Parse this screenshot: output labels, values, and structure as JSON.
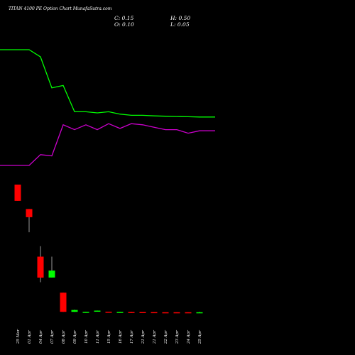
{
  "header": {
    "title": "TITAN 4100 PE Option Chart MunafaSutra.com",
    "close": "C: 0.15",
    "high": "H: 0.50",
    "open": "O: 0.10",
    "low": "L: 0.05"
  },
  "colors": {
    "background": "#000000",
    "up": "#00ff00",
    "down": "#ff0000",
    "wick": "#999999",
    "line_green": "#00ff00",
    "line_magenta": "#cc00cc",
    "label": "#ffffff"
  },
  "chart_data": {
    "type": "candlestick",
    "title": "TITAN 4100 PE Option Chart MunafaSutra.com",
    "categories": [
      "25 Mar",
      "01 Apr",
      "04 Apr",
      "07 Apr",
      "08 Apr",
      "09 Apr",
      "10 Apr",
      "11 Apr",
      "15 Apr",
      "16 Apr",
      "17 Apr",
      "21 Apr",
      "21 Apr",
      "22 Apr",
      "23 Apr",
      "24 Apr",
      "25 Apr"
    ],
    "candles": [
      {
        "open": 110.0,
        "high": 110.0,
        "low": 96.0,
        "close": 96.0
      },
      {
        "open": 89.0,
        "high": 89.0,
        "low": 69.0,
        "close": 82.0
      },
      {
        "open": 48.0,
        "high": 57.0,
        "low": 26.0,
        "close": 30.0
      },
      {
        "open": 30.0,
        "high": 48.0,
        "low": 30.0,
        "close": 36.0
      },
      {
        "open": 17.0,
        "high": 17.0,
        "low": 0.4,
        "close": 0.5
      },
      {
        "open": 0.5,
        "high": 2.3,
        "low": 0.5,
        "close": 2.1
      },
      {
        "open": 0.4,
        "high": 0.55,
        "low": 0.3,
        "close": 0.5
      },
      {
        "open": 0.8,
        "high": 1.6,
        "low": 0.8,
        "close": 1.5
      },
      {
        "open": 0.6,
        "high": 0.6,
        "low": 0.25,
        "close": 0.3
      },
      {
        "open": 0.25,
        "high": 0.45,
        "low": 0.2,
        "close": 0.4
      },
      {
        "open": 0.35,
        "high": 0.5,
        "low": 0.2,
        "close": 0.25
      },
      {
        "open": 0.3,
        "high": 0.3,
        "low": 0.2,
        "close": 0.2
      },
      {
        "open": 0.25,
        "high": 0.25,
        "low": 0.12,
        "close": 0.15
      },
      {
        "open": 0.15,
        "high": 0.15,
        "low": 0.1,
        "close": 0.1
      },
      {
        "open": 0.12,
        "high": 0.12,
        "low": 0.08,
        "close": 0.08
      },
      {
        "open": 0.1,
        "high": 0.1,
        "low": 0.05,
        "close": 0.07
      },
      {
        "open": 0.1,
        "high": 0.5,
        "low": 0.05,
        "close": 0.15
      }
    ],
    "upper_lines": [
      {
        "color": "#00ff00",
        "values": [
          100,
          100,
          94,
          68,
          70,
          48,
          48,
          47,
          48,
          46,
          45,
          45,
          44.5,
          44.2,
          44,
          43.8,
          43.6
        ]
      },
      {
        "color": "#cc00cc",
        "values": [
          3,
          3,
          12,
          11,
          37,
          33,
          37,
          33,
          38,
          34,
          38,
          37,
          35,
          33,
          33,
          30,
          32
        ]
      }
    ]
  }
}
